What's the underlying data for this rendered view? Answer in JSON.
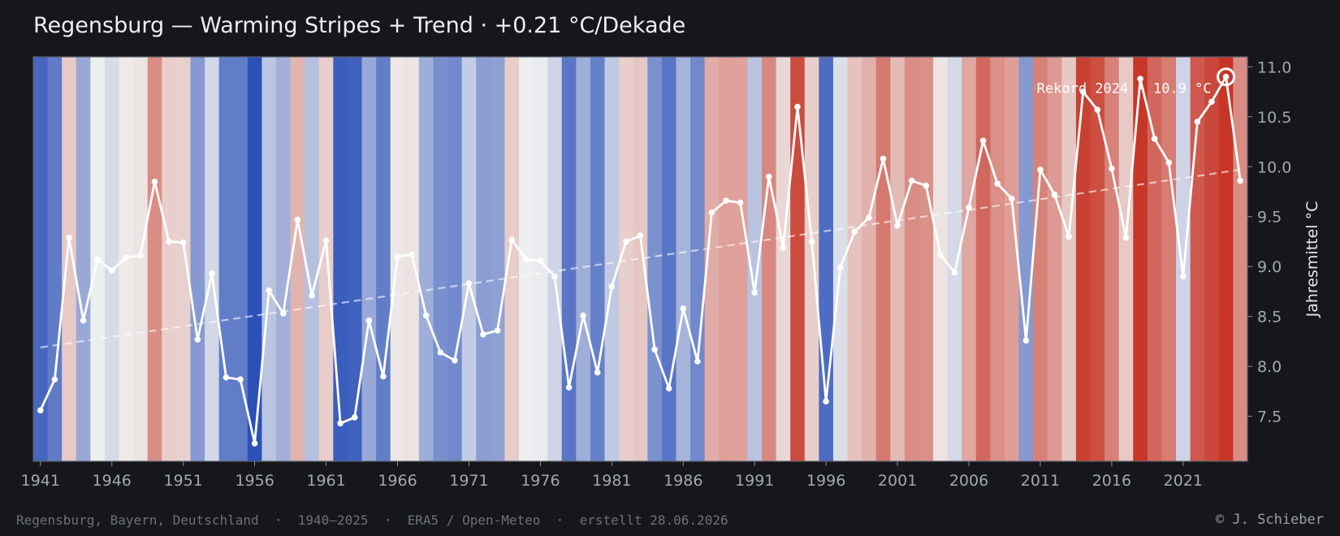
{
  "title": "Regensburg — Warming Stripes + Trend  ·  +0.21 °C/Dekade",
  "footer_left": "Regensburg, Bayern, Deutschland  ·  1940–2025  ·  ERA5 / Open-Meteo  ·  erstellt 28.06.2026",
  "footer_right": "© J. Schieber",
  "colors": {
    "background": "#16171b",
    "line": "#ffffff",
    "cold": "#2b50b8",
    "warm": "#c63526",
    "neutral": "#efefef"
  },
  "chart_data": {
    "type": "line",
    "title": "Regensburg — Warming Stripes + Trend  ·  +0.21 °C/Dekade",
    "xlabel": "",
    "ylabel": "Jahresmittel °C",
    "x_ticks": [
      "1941",
      "1946",
      "1951",
      "1956",
      "1961",
      "1966",
      "1971",
      "1976",
      "1981",
      "1986",
      "1991",
      "1996",
      "2001",
      "2006",
      "2011",
      "2016",
      "2021"
    ],
    "y_ticks": [
      "7.5",
      "8.0",
      "8.5",
      "9.0",
      "9.5",
      "10.0",
      "10.5",
      "11.0"
    ],
    "ylim": [
      7.05,
      11.1
    ],
    "grid": false,
    "background": "warming stripes (color per year by annual mean temperature, blue = cold, red = warm)",
    "x": [
      1941,
      1942,
      1943,
      1944,
      1945,
      1946,
      1947,
      1948,
      1949,
      1950,
      1951,
      1952,
      1953,
      1954,
      1955,
      1956,
      1957,
      1958,
      1959,
      1960,
      1961,
      1962,
      1963,
      1964,
      1965,
      1966,
      1967,
      1968,
      1969,
      1970,
      1971,
      1972,
      1973,
      1974,
      1975,
      1976,
      1977,
      1978,
      1979,
      1980,
      1981,
      1982,
      1983,
      1984,
      1985,
      1986,
      1987,
      1988,
      1989,
      1990,
      1991,
      1992,
      1993,
      1994,
      1995,
      1996,
      1997,
      1998,
      1999,
      2000,
      2001,
      2002,
      2003,
      2004,
      2005,
      2006,
      2007,
      2008,
      2009,
      2010,
      2011,
      2012,
      2013,
      2014,
      2015,
      2016,
      2017,
      2018,
      2019,
      2020,
      2021,
      2022,
      2023,
      2024,
      2025
    ],
    "series": [
      {
        "values": [
          7.56,
          7.87,
          9.29,
          8.46,
          9.07,
          8.96,
          9.09,
          9.11,
          9.85,
          9.25,
          9.24,
          8.27,
          8.93,
          7.89,
          7.87,
          7.23,
          8.76,
          8.53,
          9.47,
          8.71,
          9.26,
          7.43,
          7.49,
          8.46,
          7.9,
          9.1,
          9.12,
          8.51,
          8.14,
          8.06,
          8.83,
          8.32,
          8.36,
          9.27,
          9.07,
          9.06,
          8.9,
          7.79,
          8.51,
          7.94,
          8.8,
          9.25,
          9.31,
          8.17,
          7.78,
          8.58,
          8.05,
          9.54,
          9.66,
          9.64,
          8.74,
          9.9,
          9.19,
          10.6,
          9.25,
          7.65,
          8.99,
          9.35,
          9.49,
          10.08,
          9.41,
          9.86,
          9.81,
          9.12,
          8.94,
          9.59,
          10.26,
          9.83,
          9.68,
          8.26,
          9.97,
          9.72,
          9.3,
          10.75,
          10.57,
          9.98,
          9.29,
          10.88,
          10.28,
          10.04,
          8.9,
          10.45,
          10.65,
          10.9,
          9.86
        ]
      }
    ],
    "trend": {
      "start": 8.19,
      "end": 9.97,
      "rate_label": "+0.21 °C/Dekade"
    },
    "annotation": {
      "text": "Rekord 2024 · 10.9 °C",
      "x": 2024,
      "y": 10.9
    }
  }
}
